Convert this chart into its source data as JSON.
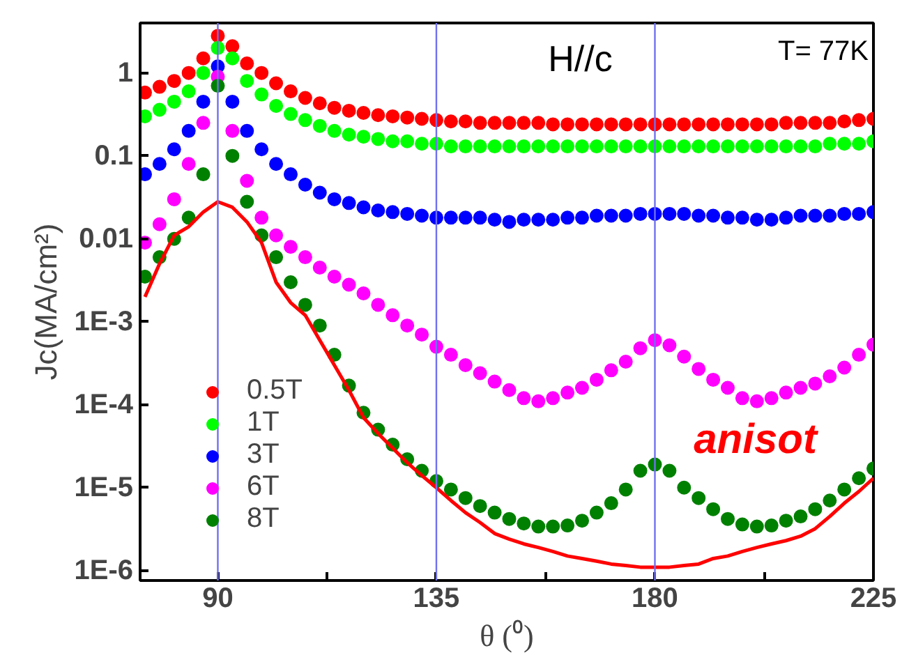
{
  "chart_data": {
    "type": "scatter",
    "xlabel": "θ (⁰)",
    "ylabel": "Jc(MA/cm²)",
    "log": "y",
    "grid": false,
    "legend": "bottom left",
    "marker": "circle",
    "xlim": [
      74,
      225
    ],
    "xticks": [
      90,
      {
        "value": 112.5,
        "label": null
      },
      135,
      {
        "value": 157.5,
        "label": null
      },
      180,
      {
        "value": 202.5,
        "label": null
      },
      225
    ],
    "ylim": [
      7.6e-07,
      4
    ],
    "yticks": [
      {
        "value": 1e-06,
        "label": "1E-6"
      },
      {
        "value": 1e-05,
        "label": "1E-5"
      },
      {
        "value": 0.0001,
        "label": "1E-4"
      },
      {
        "value": 0.001,
        "label": "1E-3"
      },
      0.01,
      0.1,
      1
    ],
    "x": [
      75,
      78,
      81,
      84,
      87,
      90,
      93,
      96,
      99,
      102,
      105,
      108,
      111,
      114,
      117,
      120,
      123,
      126,
      129,
      132,
      135,
      138,
      141,
      144,
      147,
      150,
      153,
      156,
      159,
      162,
      165,
      168,
      171,
      174,
      177,
      180,
      183,
      186,
      189,
      192,
      195,
      198,
      201,
      204,
      207,
      210,
      213,
      216,
      219,
      222,
      225
    ],
    "ref_lines": [
      {
        "axis": "x",
        "value": 90,
        "color": "#7070f0"
      },
      {
        "axis": "x",
        "value": 135,
        "color": "#7070f0"
      },
      {
        "axis": "x",
        "value": 180,
        "color": "#7070f0"
      }
    ],
    "annotations": [
      "H//c",
      "T= 77K",
      "anisot"
    ],
    "series": [
      {
        "name": "0.5T",
        "color": "#ff0000",
        "values": [
          0.58,
          0.68,
          0.8,
          1.0,
          1.5,
          2.8,
          2.1,
          1.3,
          1.0,
          0.75,
          0.6,
          0.5,
          0.43,
          0.38,
          0.35,
          0.33,
          0.31,
          0.3,
          0.29,
          0.28,
          0.27,
          0.26,
          0.26,
          0.25,
          0.25,
          0.25,
          0.25,
          0.25,
          0.24,
          0.24,
          0.24,
          0.24,
          0.24,
          0.24,
          0.24,
          0.24,
          0.24,
          0.24,
          0.24,
          0.24,
          0.24,
          0.24,
          0.24,
          0.24,
          0.25,
          0.25,
          0.25,
          0.25,
          0.26,
          0.27,
          0.28
        ]
      },
      {
        "name": "1T",
        "color": "#00ff00",
        "values": [
          0.3,
          0.36,
          0.45,
          0.6,
          1.0,
          2.0,
          1.5,
          0.8,
          0.55,
          0.4,
          0.32,
          0.27,
          0.23,
          0.2,
          0.18,
          0.17,
          0.16,
          0.15,
          0.15,
          0.14,
          0.14,
          0.13,
          0.13,
          0.13,
          0.13,
          0.13,
          0.13,
          0.13,
          0.13,
          0.13,
          0.13,
          0.13,
          0.13,
          0.13,
          0.13,
          0.13,
          0.13,
          0.13,
          0.13,
          0.13,
          0.13,
          0.13,
          0.13,
          0.13,
          0.13,
          0.13,
          0.13,
          0.14,
          0.14,
          0.14,
          0.15
        ]
      },
      {
        "name": "3T",
        "color": "#0000ff",
        "values": [
          0.06,
          0.08,
          0.12,
          0.2,
          0.45,
          1.2,
          0.45,
          0.2,
          0.12,
          0.08,
          0.06,
          0.045,
          0.036,
          0.03,
          0.027,
          0.024,
          0.022,
          0.021,
          0.02,
          0.019,
          0.018,
          0.018,
          0.018,
          0.018,
          0.017,
          0.016,
          0.017,
          0.017,
          0.017,
          0.018,
          0.018,
          0.019,
          0.019,
          0.019,
          0.02,
          0.02,
          0.02,
          0.02,
          0.019,
          0.019,
          0.018,
          0.018,
          0.017,
          0.017,
          0.018,
          0.019,
          0.019,
          0.019,
          0.02,
          0.02,
          0.021
        ]
      },
      {
        "name": "6T",
        "color": "#ff00ff",
        "values": [
          0.009,
          0.015,
          0.03,
          0.08,
          0.25,
          0.9,
          0.2,
          0.05,
          0.018,
          0.011,
          0.008,
          0.006,
          0.0045,
          0.0035,
          0.0028,
          0.0022,
          0.0016,
          0.0012,
          0.0009,
          0.0007,
          0.0005,
          0.0004,
          0.0003,
          0.00024,
          0.00019,
          0.00015,
          0.00012,
          0.00011,
          0.00012,
          0.00014,
          0.00016,
          0.0002,
          0.00026,
          0.00033,
          0.00048,
          0.0006,
          0.00052,
          0.00038,
          0.00027,
          0.0002,
          0.00016,
          0.00012,
          0.00011,
          0.00012,
          0.00014,
          0.00016,
          0.00018,
          0.00022,
          0.00028,
          0.0004,
          0.00053
        ]
      },
      {
        "name": "8T",
        "color": "#008000",
        "values": [
          0.0035,
          0.006,
          0.01,
          0.018,
          0.06,
          0.7,
          0.1,
          0.028,
          0.011,
          0.006,
          0.003,
          0.0016,
          0.0009,
          0.0004,
          0.00017,
          8e-05,
          5e-05,
          3.3e-05,
          2.2e-05,
          1.6e-05,
          1.2e-05,
          9.5e-06,
          7.5e-06,
          6e-06,
          5e-06,
          4.2e-06,
          3.7e-06,
          3.4e-06,
          3.4e-06,
          3.5e-06,
          4e-06,
          5e-06,
          6.5e-06,
          9.5e-06,
          1.6e-05,
          1.9e-05,
          1.6e-05,
          1e-05,
          7.5e-06,
          5.5e-06,
          4.2e-06,
          3.6e-06,
          3.4e-06,
          3.5e-06,
          4e-06,
          4.5e-06,
          5.5e-06,
          7e-06,
          9.5e-06,
          1.3e-05,
          1.7e-05
        ]
      },
      {
        "type": "line",
        "marker": "none",
        "color": "#ff0000",
        "values": [
          0.002,
          0.005,
          0.011,
          0.014,
          0.021,
          0.028,
          0.024,
          0.016,
          0.009,
          0.003,
          0.0017,
          0.0012,
          0.0006,
          0.0003,
          0.00015,
          7e-05,
          4.5e-05,
          3e-05,
          2e-05,
          1.4e-05,
          1e-05,
          7e-06,
          5e-06,
          3.8e-06,
          2.8e-06,
          2.4e-06,
          2.1e-06,
          1.9e-06,
          1.7e-06,
          1.5e-06,
          1.4e-06,
          1.3e-06,
          1.2e-06,
          1.15e-06,
          1.1e-06,
          1.1e-06,
          1.1e-06,
          1.15e-06,
          1.2e-06,
          1.4e-06,
          1.5e-06,
          1.7e-06,
          1.9e-06,
          2.1e-06,
          2.3e-06,
          2.6e-06,
          3.2e-06,
          4.5e-06,
          6.5e-06,
          9e-06,
          1.3e-05
        ]
      }
    ]
  }
}
